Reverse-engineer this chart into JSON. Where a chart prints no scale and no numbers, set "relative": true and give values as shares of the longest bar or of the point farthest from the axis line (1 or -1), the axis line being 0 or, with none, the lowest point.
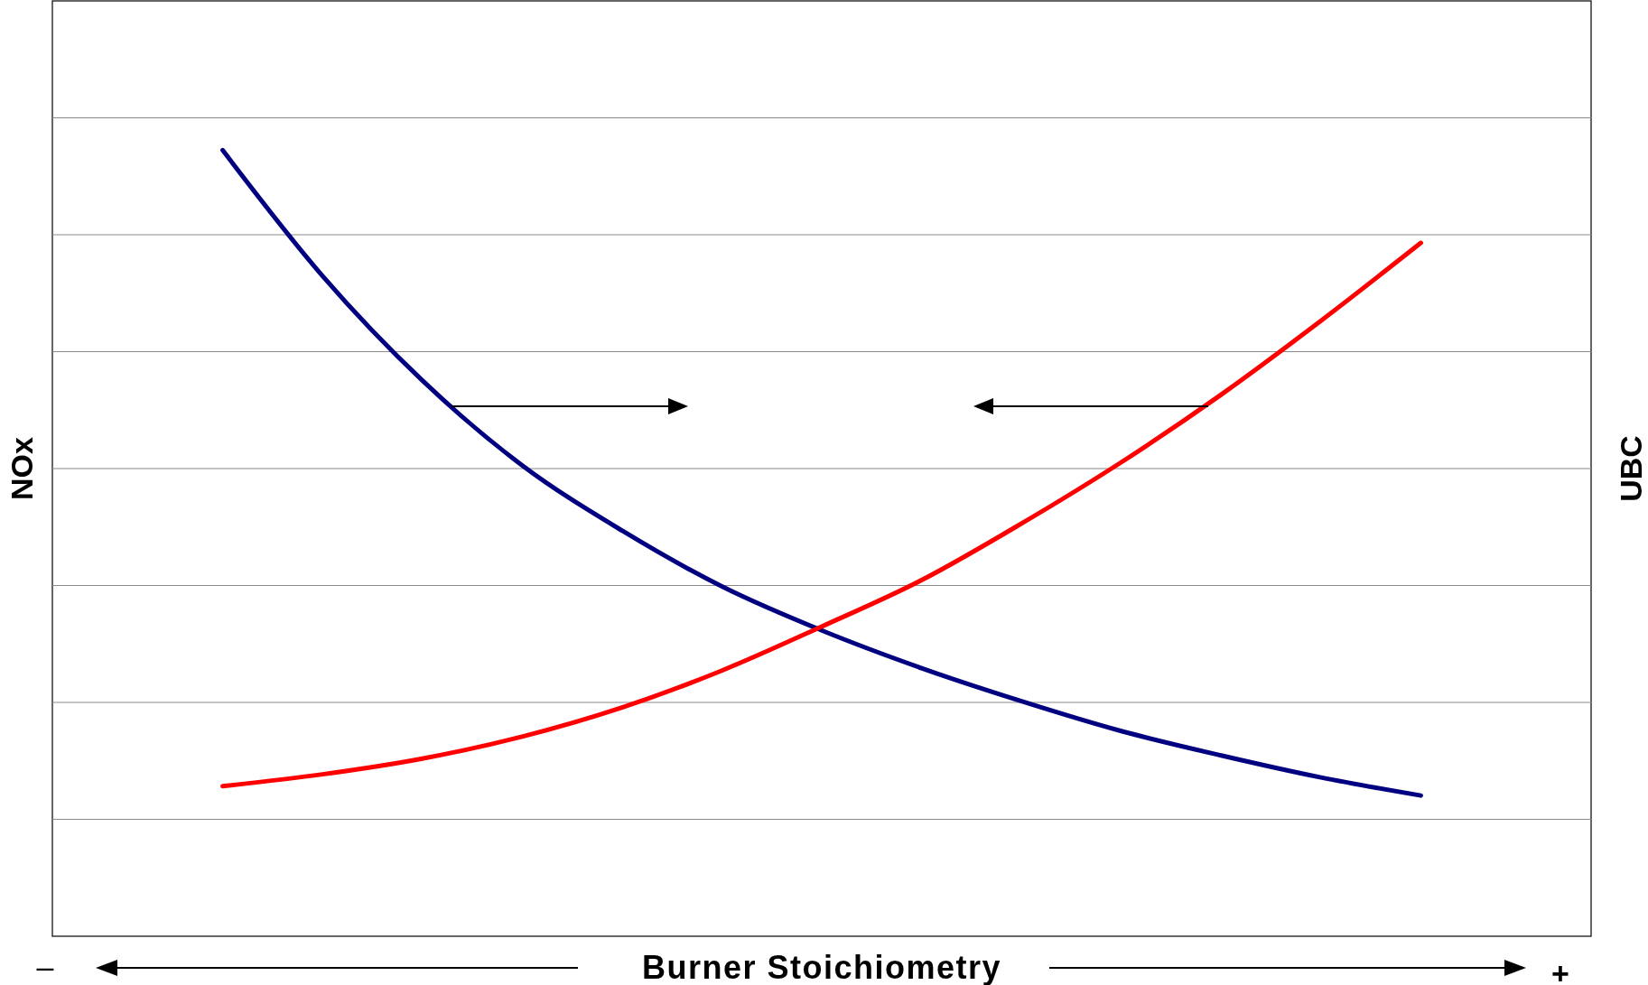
{
  "chart_data": {
    "type": "line",
    "relative": true,
    "xlabel": "Burner Stoichiometry",
    "ylabel": "NOx",
    "y2label": "UBC",
    "categories": [
      null,
      null,
      null,
      null,
      null,
      null,
      null,
      null,
      null,
      null,
      null,
      null,
      null
    ],
    "grid": "y",
    "marker": "none",
    "line_style": "solid",
    "annotations": [
      "–",
      "+"
    ],
    "series": [
      {
        "color": "#000080",
        "values": [
          1,
          0.84,
          0.707,
          0.599,
          0.516,
          0.445,
          0.389,
          0.341,
          0.299,
          0.261,
          0.23,
          0.202,
          0.179
        ]
      },
      {
        "color": "#ff0000",
        "values": [
          0.191,
          0.206,
          0.226,
          0.254,
          0.291,
          0.338,
          0.394,
          0.453,
          0.525,
          0.603,
          0.689,
          0.783,
          0.882
        ]
      }
    ]
  }
}
